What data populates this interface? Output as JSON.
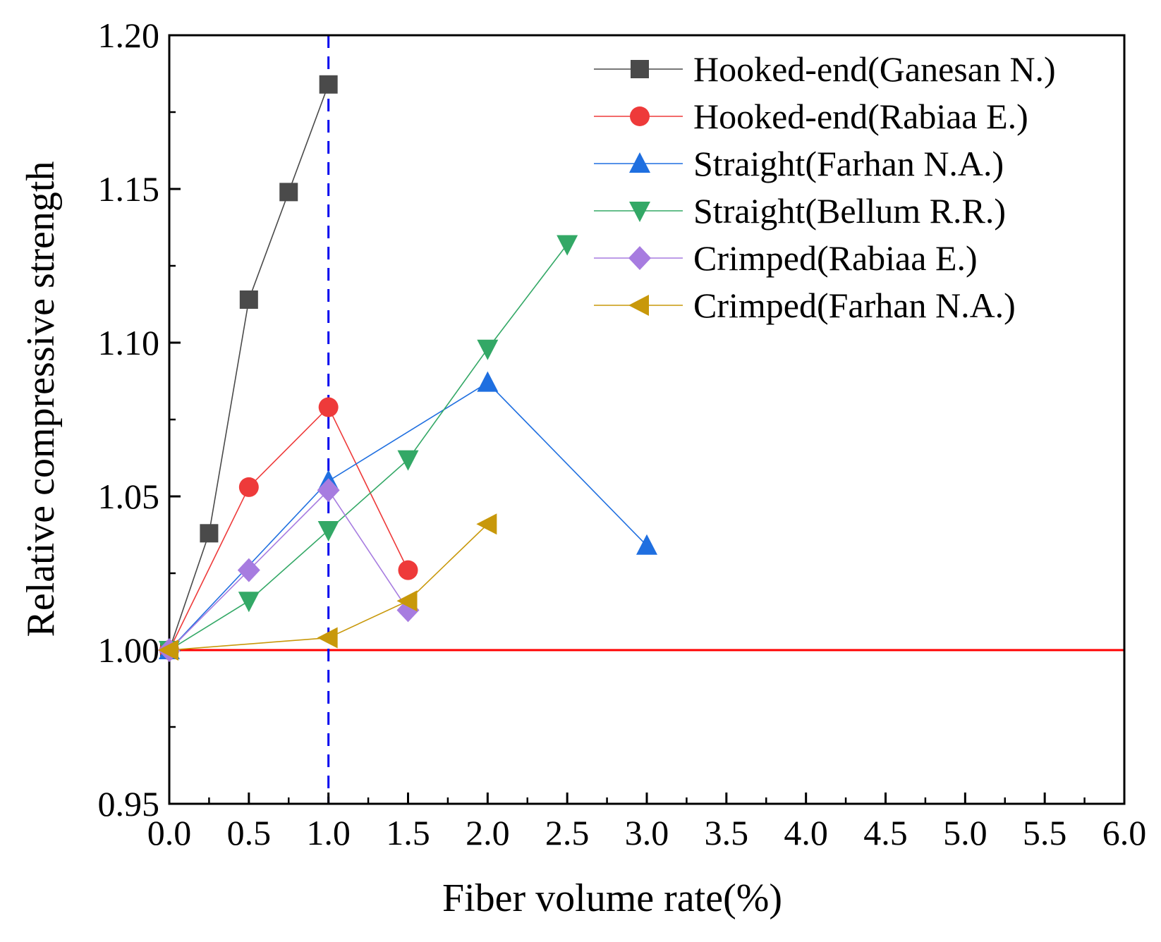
{
  "chart_data": {
    "type": "line",
    "title": "",
    "xlabel": "Fiber volume rate(%)",
    "ylabel": "Relative compressive strength",
    "xlim": [
      0,
      6
    ],
    "ylim": [
      0.95,
      1.2
    ],
    "x_ticks": [
      "0.0",
      "0.5",
      "1.0",
      "1.5",
      "2.0",
      "2.5",
      "3.0",
      "3.5",
      "4.0",
      "4.5",
      "5.0",
      "5.5",
      "6.0"
    ],
    "y_ticks": [
      "0.95",
      "1.00",
      "1.05",
      "1.10",
      "1.15",
      "1.20"
    ],
    "grid": false,
    "legend_position": "top-right",
    "reference_lines": [
      {
        "orientation": "horizontal",
        "value": 1.0,
        "color": "#ff0000",
        "style": "solid"
      },
      {
        "orientation": "vertical",
        "value": 1.0,
        "color": "#0000ee",
        "style": "dashed"
      }
    ],
    "series": [
      {
        "name": "Hooked-end(Ganesan N.)",
        "marker": "square",
        "color": "#4a4a4a",
        "x": [
          0,
          0.25,
          0.5,
          0.75,
          1.0
        ],
        "y": [
          1.0,
          1.038,
          1.114,
          1.149,
          1.184
        ]
      },
      {
        "name": "Hooked-end(Rabiaa E.)",
        "marker": "circle",
        "color": "#ee3a3a",
        "x": [
          0,
          0.5,
          1.0,
          1.5
        ],
        "y": [
          1.0,
          1.053,
          1.079,
          1.026
        ]
      },
      {
        "name": "Straight(Farhan N.A.)",
        "marker": "triangle-up",
        "color": "#1f6fe0",
        "x": [
          0,
          1.0,
          2.0,
          3.0
        ],
        "y": [
          1.0,
          1.055,
          1.087,
          1.034
        ]
      },
      {
        "name": "Straight(Bellum R.R.)",
        "marker": "triangle-down",
        "color": "#33a866",
        "x": [
          0,
          0.5,
          1.0,
          1.5,
          2.0,
          2.5
        ],
        "y": [
          1.0,
          1.016,
          1.039,
          1.062,
          1.098,
          1.132
        ]
      },
      {
        "name": "Crimped(Rabiaa E.)",
        "marker": "diamond",
        "color": "#a77ce0",
        "x": [
          0,
          0.5,
          1.0,
          1.5
        ],
        "y": [
          1.0,
          1.026,
          1.052,
          1.013
        ]
      },
      {
        "name": "Crimped(Farhan N.A.)",
        "marker": "triangle-left",
        "color": "#c8980a",
        "x": [
          0,
          1.0,
          1.5,
          2.0
        ],
        "y": [
          1.0,
          1.004,
          1.016,
          1.041
        ]
      }
    ]
  }
}
